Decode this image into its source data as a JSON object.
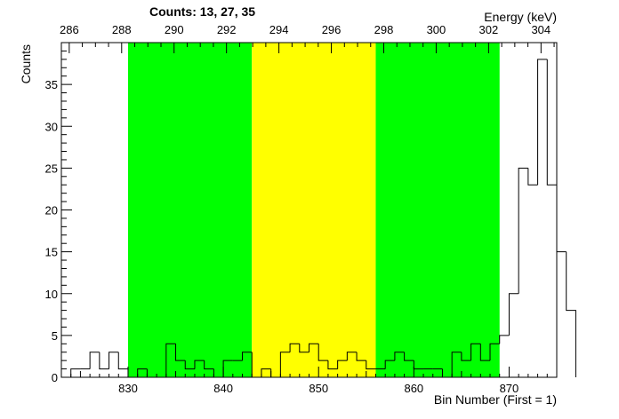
{
  "chart_data": {
    "type": "bar",
    "histogram": true,
    "title": "Counts:   13,   27,   35",
    "xlabel": "Bin Number (First = 1)",
    "ylabel": "Counts",
    "x2label": "Energy (keV)",
    "xlim": [
      823,
      875
    ],
    "ylim": [
      0,
      40
    ],
    "x2lim": [
      285.7,
      304.6
    ],
    "grid": false,
    "x_ticks": [
      830,
      840,
      850,
      860,
      870
    ],
    "y_ticks": [
      0,
      5,
      10,
      15,
      20,
      25,
      30,
      35
    ],
    "x2_ticks": [
      286,
      288,
      290,
      292,
      294,
      296,
      298,
      300,
      302,
      304
    ],
    "regions": [
      {
        "from": 830,
        "to": 843,
        "color": "#00ff00"
      },
      {
        "from": 843,
        "to": 856,
        "color": "#ffff00"
      },
      {
        "from": 856,
        "to": 869,
        "color": "#00ff00"
      }
    ],
    "bin_start": 823,
    "bin_width": 1,
    "values": [
      0,
      1,
      1,
      3,
      1,
      3,
      1,
      0,
      1,
      0,
      0,
      4,
      2,
      1,
      2,
      1,
      0,
      2,
      2,
      3,
      0,
      1,
      0,
      3,
      4,
      3,
      4,
      2,
      1,
      2,
      3,
      2,
      1,
      1,
      2,
      3,
      2,
      1,
      1,
      1,
      0,
      3,
      2,
      4,
      2,
      4,
      5,
      10,
      25,
      23,
      38,
      23,
      15,
      8
    ]
  }
}
